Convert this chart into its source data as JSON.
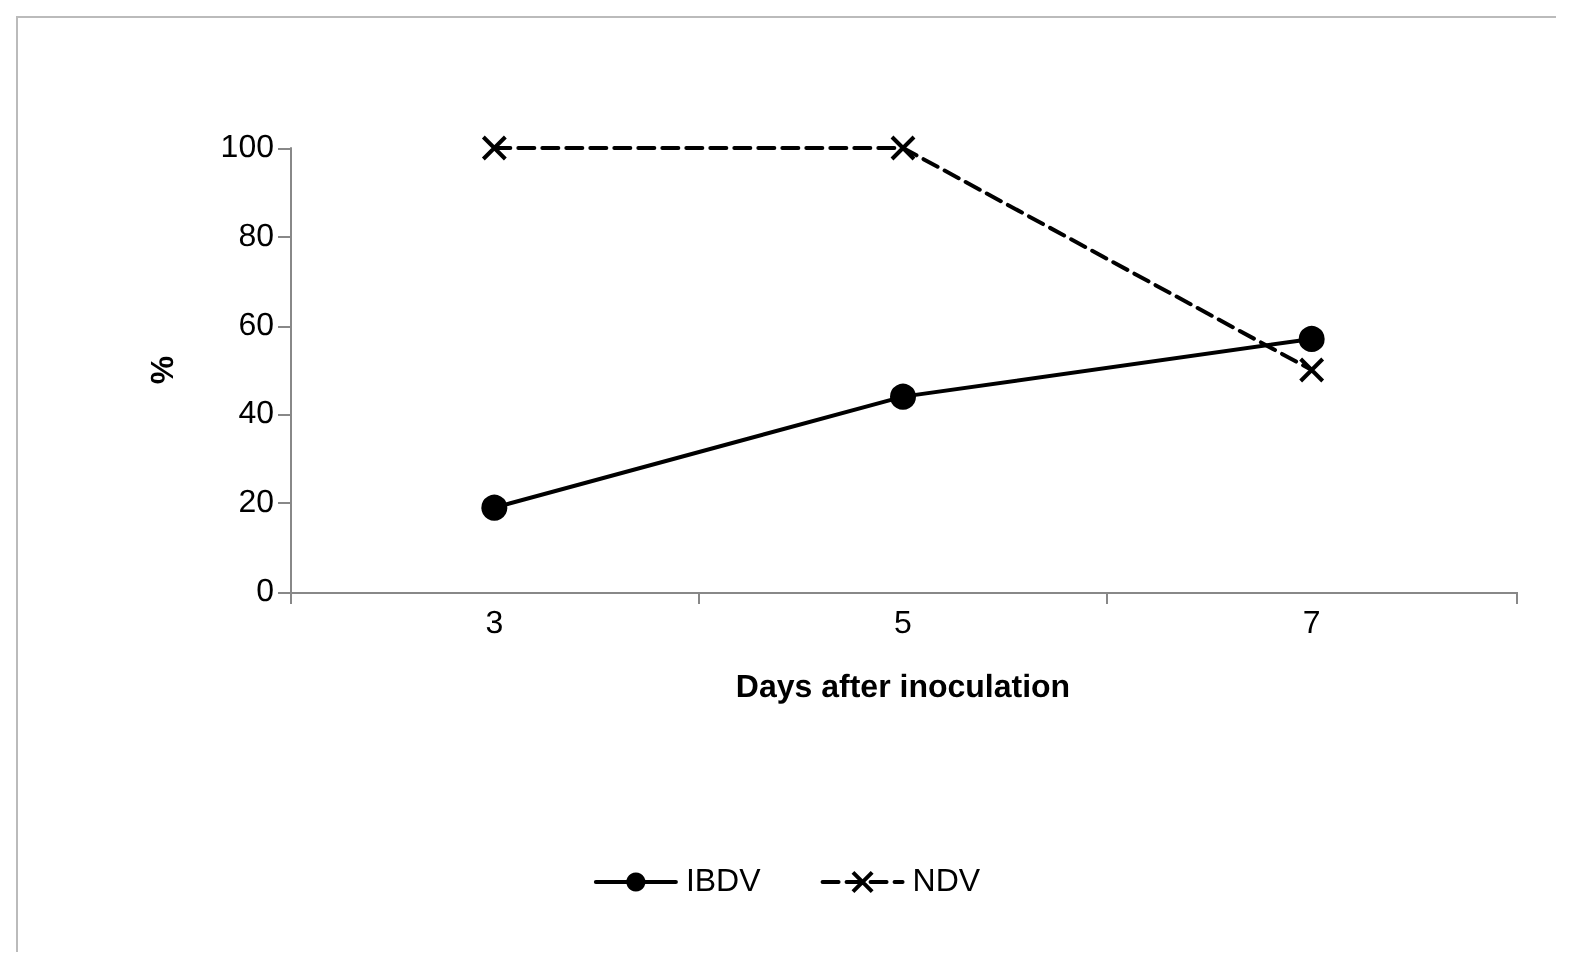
{
  "chart_data": {
    "type": "line",
    "xlabel": "Days after inoculation",
    "ylabel": "%",
    "categories": [
      "3",
      "5",
      "7"
    ],
    "series": [
      {
        "name": "IBDV",
        "color": "#000000",
        "values": [
          19,
          44,
          57
        ],
        "marker": "circle",
        "line_style": "solid"
      },
      {
        "name": "NDV",
        "color": "#000000",
        "values": [
          100,
          100,
          50
        ],
        "marker": "cross",
        "line_style": "dashed"
      }
    ],
    "ylim": [
      0,
      100
    ],
    "yticks": [
      0,
      20,
      40,
      60,
      80,
      100
    ],
    "grid": false,
    "legend": "bottom"
  }
}
